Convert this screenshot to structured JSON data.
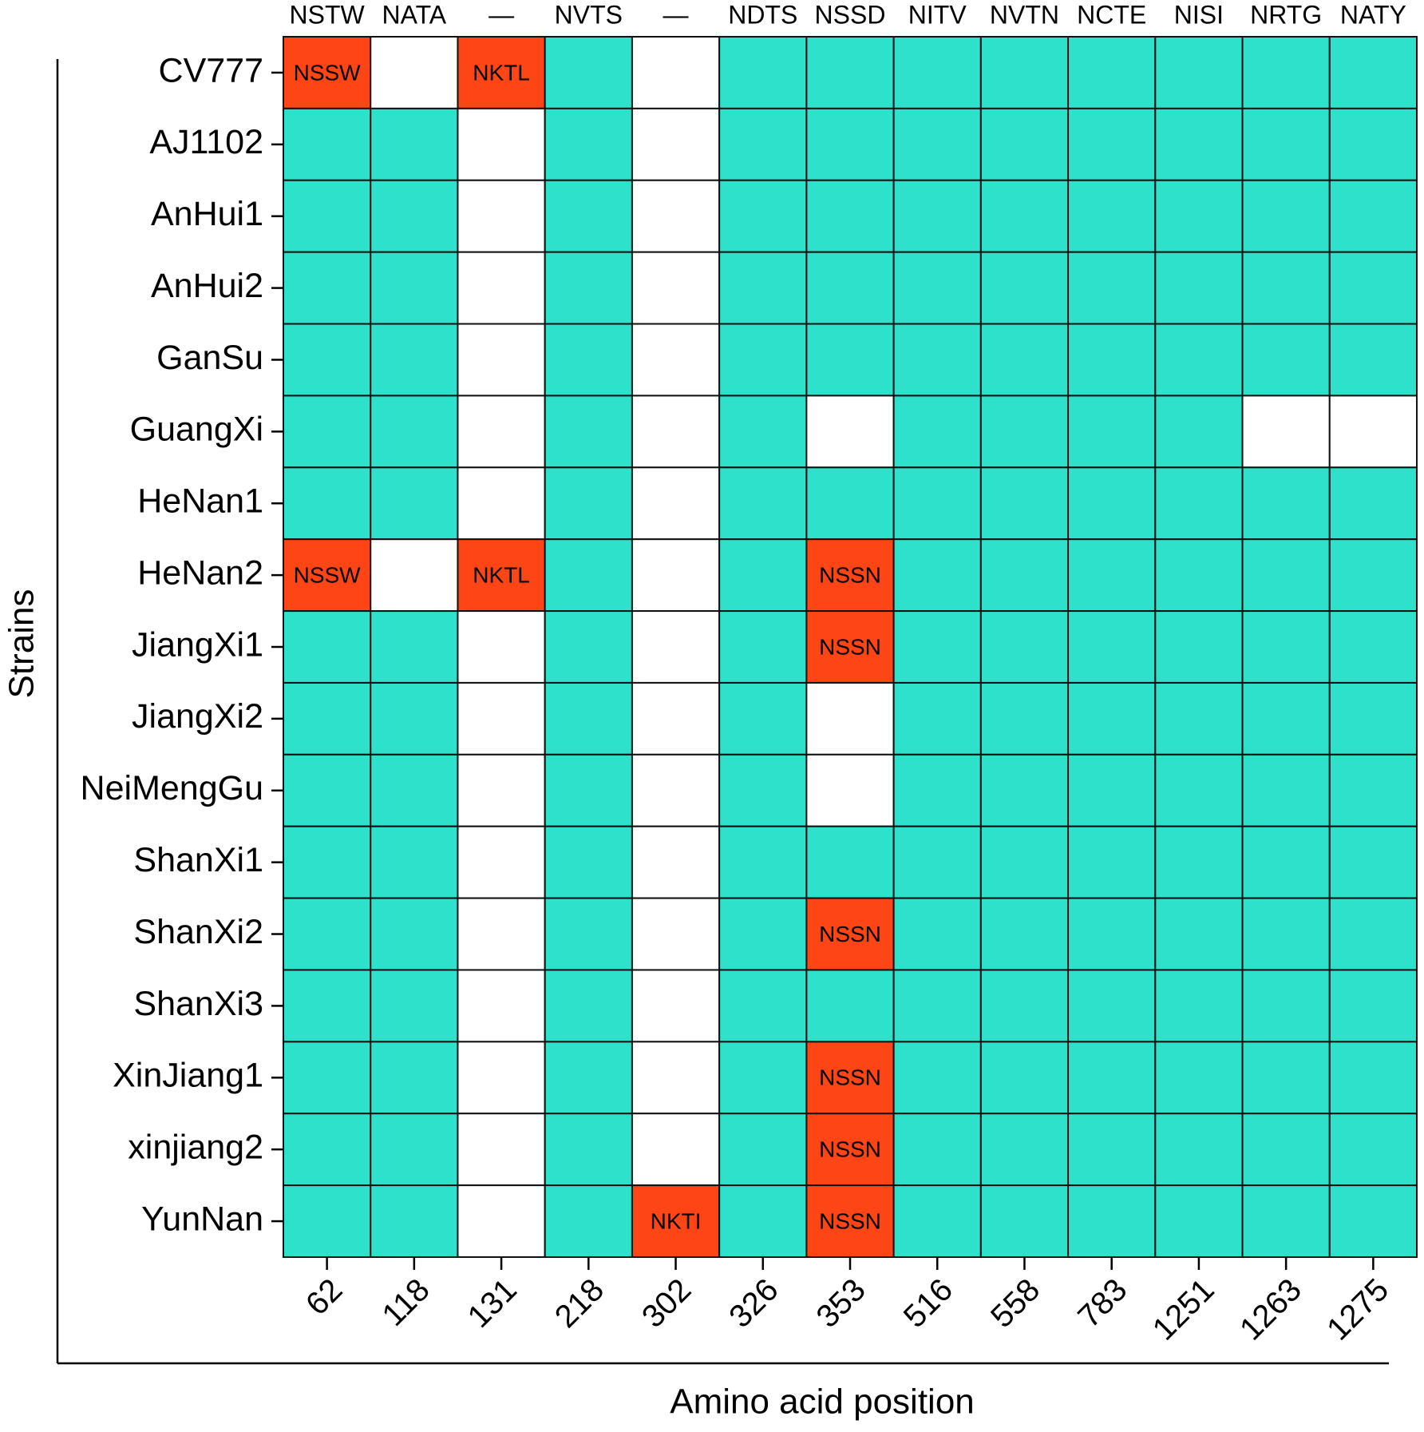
{
  "chart_data": {
    "type": "heatmap",
    "xlabel": "Amino acid position",
    "ylabel": "Strains",
    "categories": [
      "62",
      "118",
      "131",
      "218",
      "302",
      "326",
      "353",
      "516",
      "558",
      "783",
      "1251",
      "1263",
      "1275"
    ],
    "column_labels": [
      "NSTW",
      "NATA",
      "—",
      "NVTS",
      "—",
      "NDTS",
      "NSSD",
      "NITV",
      "NVTN",
      "NCTE",
      "NISI",
      "NRTG",
      "NATY"
    ],
    "rows": [
      "CV777",
      "AJ1102",
      "AnHui1",
      "AnHui2",
      "GanSu",
      "GuangXi",
      "HeNan1",
      "HeNan2",
      "JiangXi1",
      "JiangXi2",
      "NeiMengGu",
      "ShanXi1",
      "ShanXi2",
      "ShanXi3",
      "XinJiang1",
      "xinjiang2",
      "YunNan"
    ],
    "colors": [
      "#ffffff",
      "#2de1ca",
      "#fe4515"
    ],
    "values": [
      [
        2,
        0,
        2,
        1,
        0,
        1,
        1,
        1,
        1,
        1,
        1,
        1,
        1
      ],
      [
        1,
        1,
        0,
        1,
        0,
        1,
        1,
        1,
        1,
        1,
        1,
        1,
        1
      ],
      [
        1,
        1,
        0,
        1,
        0,
        1,
        1,
        1,
        1,
        1,
        1,
        1,
        1
      ],
      [
        1,
        1,
        0,
        1,
        0,
        1,
        1,
        1,
        1,
        1,
        1,
        1,
        1
      ],
      [
        1,
        1,
        0,
        1,
        0,
        1,
        1,
        1,
        1,
        1,
        1,
        1,
        1
      ],
      [
        1,
        1,
        0,
        1,
        0,
        1,
        0,
        1,
        1,
        1,
        1,
        0,
        0
      ],
      [
        1,
        1,
        0,
        1,
        0,
        1,
        1,
        1,
        1,
        1,
        1,
        1,
        1
      ],
      [
        2,
        0,
        2,
        1,
        0,
        1,
        2,
        1,
        1,
        1,
        1,
        1,
        1
      ],
      [
        1,
        1,
        0,
        1,
        0,
        1,
        2,
        1,
        1,
        1,
        1,
        1,
        1
      ],
      [
        1,
        1,
        0,
        1,
        0,
        1,
        0,
        1,
        1,
        1,
        1,
        1,
        1
      ],
      [
        1,
        1,
        0,
        1,
        0,
        1,
        0,
        1,
        1,
        1,
        1,
        1,
        1
      ],
      [
        1,
        1,
        0,
        1,
        0,
        1,
        1,
        1,
        1,
        1,
        1,
        1,
        1
      ],
      [
        1,
        1,
        0,
        1,
        0,
        1,
        2,
        1,
        1,
        1,
        1,
        1,
        1
      ],
      [
        1,
        1,
        0,
        1,
        0,
        1,
        1,
        1,
        1,
        1,
        1,
        1,
        1
      ],
      [
        1,
        1,
        0,
        1,
        0,
        1,
        2,
        1,
        1,
        1,
        1,
        1,
        1
      ],
      [
        1,
        1,
        0,
        1,
        0,
        1,
        2,
        1,
        1,
        1,
        1,
        1,
        1
      ],
      [
        1,
        1,
        0,
        1,
        2,
        1,
        2,
        1,
        1,
        1,
        1,
        1,
        1
      ]
    ],
    "cell_labels": [
      [
        "NSSW",
        null,
        "NKTL",
        null,
        null,
        null,
        null,
        null,
        null,
        null,
        null,
        null,
        null
      ],
      [
        null,
        null,
        null,
        null,
        null,
        null,
        null,
        null,
        null,
        null,
        null,
        null,
        null
      ],
      [
        null,
        null,
        null,
        null,
        null,
        null,
        null,
        null,
        null,
        null,
        null,
        null,
        null
      ],
      [
        null,
        null,
        null,
        null,
        null,
        null,
        null,
        null,
        null,
        null,
        null,
        null,
        null
      ],
      [
        null,
        null,
        null,
        null,
        null,
        null,
        null,
        null,
        null,
        null,
        null,
        null,
        null
      ],
      [
        null,
        null,
        null,
        null,
        null,
        null,
        null,
        null,
        null,
        null,
        null,
        null,
        null
      ],
      [
        null,
        null,
        null,
        null,
        null,
        null,
        null,
        null,
        null,
        null,
        null,
        null,
        null
      ],
      [
        "NSSW",
        null,
        "NKTL",
        null,
        null,
        null,
        "NSSN",
        null,
        null,
        null,
        null,
        null,
        null
      ],
      [
        null,
        null,
        null,
        null,
        null,
        null,
        "NSSN",
        null,
        null,
        null,
        null,
        null,
        null
      ],
      [
        null,
        null,
        null,
        null,
        null,
        null,
        null,
        null,
        null,
        null,
        null,
        null,
        null
      ],
      [
        null,
        null,
        null,
        null,
        null,
        null,
        null,
        null,
        null,
        null,
        null,
        null,
        null
      ],
      [
        null,
        null,
        null,
        null,
        null,
        null,
        null,
        null,
        null,
        null,
        null,
        null,
        null
      ],
      [
        null,
        null,
        null,
        null,
        null,
        null,
        "NSSN",
        null,
        null,
        null,
        null,
        null,
        null
      ],
      [
        null,
        null,
        null,
        null,
        null,
        null,
        null,
        null,
        null,
        null,
        null,
        null,
        null
      ],
      [
        null,
        null,
        null,
        null,
        null,
        null,
        "NSSN",
        null,
        null,
        null,
        null,
        null,
        null
      ],
      [
        null,
        null,
        null,
        null,
        null,
        null,
        "NSSN",
        null,
        null,
        null,
        null,
        null,
        null
      ],
      [
        null,
        null,
        null,
        null,
        "NKTI",
        null,
        "NSSN",
        null,
        null,
        null,
        null,
        null,
        null
      ]
    ]
  }
}
